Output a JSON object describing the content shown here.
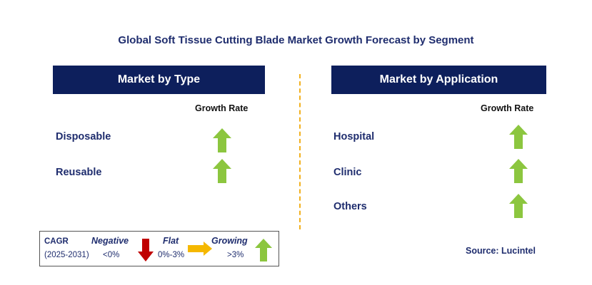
{
  "title": "Global Soft Tissue Cutting Blade Market Growth Forecast by Segment",
  "left_panel": {
    "header": "Market by Type",
    "growth_rate_label": "Growth Rate",
    "rows": [
      {
        "label": "Disposable",
        "trend": "growing"
      },
      {
        "label": "Reusable",
        "trend": "growing"
      }
    ]
  },
  "right_panel": {
    "header": "Market by Application",
    "growth_rate_label": "Growth Rate",
    "rows": [
      {
        "label": "Hospital",
        "trend": "growing"
      },
      {
        "label": "Clinic",
        "trend": "growing"
      },
      {
        "label": "Others",
        "trend": "growing"
      }
    ]
  },
  "legend": {
    "cagr": "CAGR",
    "period": "(2025-2031)",
    "negative_label": "Negative",
    "negative_range": "<0%",
    "flat_label": "Flat",
    "flat_range": "0%-3%",
    "growing_label": "Growing",
    "growing_range": ">3%"
  },
  "source": "Source: Lucintel",
  "colors": {
    "header_bg": "#0d1f5c",
    "title_text": "#1f2d6e",
    "growing_arrow": "#8cc63f",
    "negative_arrow": "#c00000",
    "flat_arrow": "#f5b800",
    "divider": "#f2b01e"
  }
}
